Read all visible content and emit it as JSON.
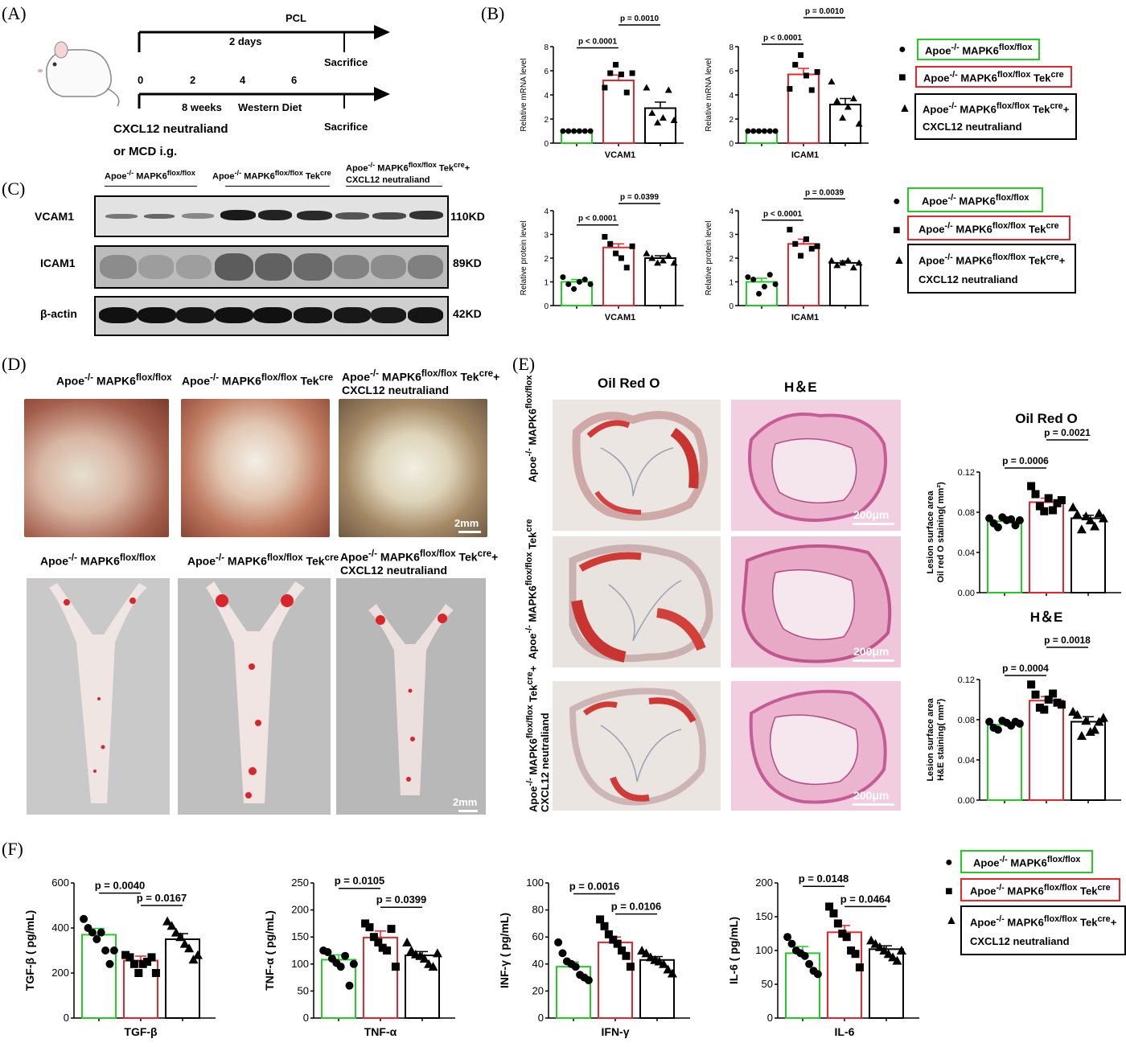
{
  "panels": {
    "A": "(A)",
    "B": "(B)",
    "C": "(C)",
    "D": "(D)",
    "E": "(E)",
    "F": "(F)"
  },
  "groups": {
    "g1": {
      "main": "Apoe",
      "sup1": "-/-",
      "mid": " MAPK6",
      "sup2": "flox/flox",
      "tail": "",
      "tail2": ""
    },
    "g2": {
      "main": "Apoe",
      "sup1": "-/-",
      "mid": " MAPK6",
      "sup2": "flox/flox",
      "tail": " Tek",
      "tailsup": "cre"
    },
    "g3": {
      "main": "Apoe",
      "sup1": "-/-",
      "mid": " MAPK6",
      "sup2": "flox/flox",
      "tail": " Tek",
      "tailsup": "cre",
      "plus": "+",
      "line2": "CXCL12 neutraliand"
    }
  },
  "colors": {
    "g1": "#22cc22",
    "g2": "#e8262b",
    "g3": "#000000"
  },
  "timeline": {
    "pcl": "PCL",
    "days": "2 days",
    "sacrifice1": "Sacrifice",
    "sacrifice2": "Sacrifice",
    "ticks": [
      "0",
      "2",
      "4",
      "6"
    ],
    "weeks": "8 weeks",
    "diet": "Western Diet",
    "treat1": "CXCL12 neutraliand",
    "treat2": "or MCD i.g."
  },
  "blot": {
    "rows": [
      {
        "name": "VCAM1",
        "kd": "110KD"
      },
      {
        "name": "ICAM1",
        "kd": "89KD"
      },
      {
        "name": "β-actin",
        "kd": "42KD"
      }
    ]
  },
  "photos": {
    "scale": "2mm"
  },
  "histo": {
    "col1": "Oil Red O",
    "col2": "H＆E",
    "scale": "200μm"
  },
  "chart_data": [
    {
      "id": "B1",
      "type": "bar",
      "xlabel": "VCAM1",
      "ylabel": "Relative mRNA level",
      "ylim": [
        0,
        8
      ],
      "ticks": [
        "0",
        "2",
        "4",
        "6",
        "8"
      ],
      "values": [
        1.0,
        5.2,
        2.9
      ],
      "sem": [
        0.0,
        0.45,
        0.5
      ],
      "points": [
        [
          1,
          1,
          1,
          1,
          1,
          1
        ],
        [
          4.6,
          5.8,
          6.5,
          5.7,
          4.2,
          5.8
        ],
        [
          4.6,
          2.5,
          1.7,
          2.1,
          4.4,
          1.9
        ]
      ],
      "sig": [
        {
          "text": "p < 0.0001",
          "a": 0,
          "b": 1,
          "y": 7.9
        },
        {
          "text": "p = 0.0010",
          "a": 1,
          "b": 2,
          "y": 9.8
        }
      ]
    },
    {
      "id": "B2",
      "type": "bar",
      "xlabel": "ICAM1",
      "ylabel": "Relative mRNA level",
      "ylim": [
        0,
        8
      ],
      "ticks": [
        "0",
        "2",
        "4",
        "6",
        "8"
      ],
      "values": [
        1.0,
        5.7,
        3.2
      ],
      "sem": [
        0.0,
        0.5,
        0.5
      ],
      "points": [
        [
          1,
          1,
          1,
          1,
          1,
          1
        ],
        [
          4.5,
          6.5,
          7.3,
          5.6,
          4.4,
          5.9
        ],
        [
          5.1,
          3.5,
          2.1,
          3.0,
          3.7,
          1.6
        ]
      ],
      "sig": [
        {
          "text": "p < 0.0001",
          "a": 0,
          "b": 1,
          "y": 8.2
        },
        {
          "text": "p = 0.0010",
          "a": 1,
          "b": 2,
          "y": 10.4
        }
      ]
    },
    {
      "id": "C1",
      "type": "bar",
      "xlabel": "VCAM1",
      "ylabel": "Relative protein level",
      "ylim": [
        0,
        4
      ],
      "ticks": [
        "0",
        "1",
        "2",
        "3",
        "4"
      ],
      "values": [
        1.0,
        2.45,
        2.0
      ],
      "sem": [
        0.1,
        0.15,
        0.1
      ],
      "points": [
        [
          1.2,
          0.9,
          0.7,
          1.0,
          1.1,
          0.9
        ],
        [
          2.9,
          2.6,
          2.2,
          2.0,
          1.6,
          2.5
        ],
        [
          2.2,
          2.0,
          1.8,
          1.9,
          2.1,
          1.8
        ]
      ],
      "sig": [
        {
          "text": "p < 0.0001",
          "a": 0,
          "b": 1,
          "y": 3.4
        },
        {
          "text": "p = 0.0399",
          "a": 1,
          "b": 2,
          "y": 4.3
        }
      ]
    },
    {
      "id": "C2",
      "type": "bar",
      "xlabel": "ICAM1",
      "ylabel": "Relative protein level",
      "ylim": [
        0,
        4
      ],
      "ticks": [
        "0",
        "1",
        "2",
        "3",
        "4"
      ],
      "values": [
        1.0,
        2.6,
        1.8
      ],
      "sem": [
        0.15,
        0.2,
        0.08
      ],
      "points": [
        [
          1.2,
          1.1,
          0.5,
          0.8,
          1.3,
          0.9
        ],
        [
          3.2,
          2.6,
          2.1,
          2.8,
          2.4,
          2.5
        ],
        [
          1.9,
          1.7,
          1.8,
          1.9,
          1.6,
          1.8
        ]
      ],
      "sig": [
        {
          "text": "p < 0.0001",
          "a": 0,
          "b": 1,
          "y": 3.6
        },
        {
          "text": "p = 0.0039",
          "a": 1,
          "b": 2,
          "y": 4.5
        }
      ]
    },
    {
      "id": "E1",
      "type": "bar",
      "title": "Oil Red O",
      "ylabel": "Lesion  surface area",
      "ylabel2": "Oil red O staining( mm²)",
      "ylim": [
        0,
        0.12
      ],
      "ticks": [
        "0.00",
        "0.04",
        "0.08",
        "0.12"
      ],
      "values": [
        0.071,
        0.09,
        0.074
      ],
      "sem": [
        0.002,
        0.004,
        0.003
      ],
      "points": [
        [
          0.074,
          0.069,
          0.065,
          0.075,
          0.072,
          0.073,
          0.067,
          0.072
        ],
        [
          0.106,
          0.098,
          0.086,
          0.081,
          0.094,
          0.082,
          0.089,
          0.092
        ],
        [
          0.085,
          0.078,
          0.063,
          0.076,
          0.072,
          0.066,
          0.079,
          0.074
        ]
      ],
      "sig": [
        {
          "text": "p = 0.0006",
          "a": 0,
          "b": 1,
          "y": 0.124
        },
        {
          "text": "p = 0.0021",
          "a": 1,
          "b": 2,
          "y": 0.152
        }
      ]
    },
    {
      "id": "E2",
      "type": "bar",
      "title": "H＆E",
      "ylabel": "Lesion  surface area",
      "ylabel2": "H&E staining( mm²)",
      "ylim": [
        0,
        0.12
      ],
      "ticks": [
        "0.00",
        "0.04",
        "0.08",
        "0.12"
      ],
      "values": [
        0.075,
        0.099,
        0.078
      ],
      "sem": [
        0.002,
        0.004,
        0.005
      ],
      "points": [
        [
          0.078,
          0.072,
          0.07,
          0.079,
          0.077,
          0.074,
          0.078,
          0.076
        ],
        [
          0.115,
          0.105,
          0.092,
          0.09,
          0.1,
          0.106,
          0.097,
          0.095
        ],
        [
          0.088,
          0.085,
          0.064,
          0.079,
          0.068,
          0.07,
          0.078,
          0.082
        ]
      ],
      "sig": [
        {
          "text": "p = 0.0004",
          "a": 0,
          "b": 1,
          "y": 0.124
        },
        {
          "text": "p = 0.0018",
          "a": 1,
          "b": 2,
          "y": 0.152
        }
      ]
    },
    {
      "id": "F1",
      "type": "bar",
      "xlabel": "TGF-β",
      "ylabel": "TGF-β ( pg/mL)",
      "ylim": [
        0,
        600
      ],
      "ticks": [
        "0",
        "200",
        "400",
        "600"
      ],
      "values": [
        370,
        255,
        350
      ],
      "sem": [
        28,
        20,
        25
      ],
      "points": [
        [
          440,
          400,
          380,
          350,
          380,
          300,
          240,
          300
        ],
        [
          280,
          270,
          240,
          200,
          240,
          250,
          270,
          200
        ],
        [
          430,
          410,
          380,
          360,
          330,
          310,
          260,
          280
        ]
      ],
      "sig": [
        {
          "text": "p = 0.0040",
          "a": 0,
          "b": 1,
          "y": 555
        },
        {
          "text": "p = 0.0167",
          "a": 1,
          "b": 2,
          "y": 500
        }
      ]
    },
    {
      "id": "F2",
      "type": "bar",
      "xlabel": "TNF-α",
      "ylabel": "TNF-α ( pg/mL)",
      "ylim": [
        0,
        250
      ],
      "ticks": [
        "0",
        "50",
        "100",
        "150",
        "200",
        "250"
      ],
      "values": [
        108,
        149,
        116
      ],
      "sem": [
        9,
        12,
        7
      ],
      "points": [
        [
          125,
          122,
          110,
          102,
          95,
          115,
          60,
          100
        ],
        [
          175,
          168,
          150,
          140,
          130,
          125,
          165,
          95
        ],
        [
          140,
          125,
          118,
          115,
          110,
          100,
          95,
          120
        ]
      ],
      "sig": [
        {
          "text": "p = 0.0105",
          "a": 0,
          "b": 1,
          "y": 240
        },
        {
          "text": "p = 0.0399",
          "a": 1,
          "b": 2,
          "y": 205
        }
      ]
    },
    {
      "id": "F3",
      "type": "bar",
      "xlabel": "IFN-γ",
      "ylabel": "INF-γ ( pg/mL)",
      "ylim": [
        0,
        100
      ],
      "ticks": [
        "0",
        "20",
        "40",
        "60",
        "80",
        "100"
      ],
      "values": [
        38,
        56,
        43
      ],
      "sem": [
        3.5,
        4,
        2.5
      ],
      "points": [
        [
          56,
          48,
          42,
          40,
          38,
          32,
          30,
          28
        ],
        [
          73,
          68,
          62,
          58,
          55,
          50,
          46,
          38
        ],
        [
          50,
          48,
          45,
          43,
          42,
          40,
          36,
          33
        ]
      ],
      "sig": [
        {
          "text": "p = 0.0016",
          "a": 0,
          "b": 1,
          "y": 92
        },
        {
          "text": "p = 0.0106",
          "a": 1,
          "b": 2,
          "y": 77
        }
      ]
    },
    {
      "id": "F4",
      "type": "bar",
      "xlabel": "IL-6",
      "ylabel": "IL-6 ( pg/mL)",
      "ylim": [
        0,
        200
      ],
      "ticks": [
        "0",
        "50",
        "100",
        "150",
        "200"
      ],
      "values": [
        96,
        127,
        102
      ],
      "sem": [
        10,
        10,
        5
      ],
      "points": [
        [
          120,
          110,
          100,
          96,
          92,
          80,
          70,
          65
        ],
        [
          165,
          155,
          140,
          125,
          120,
          100,
          95,
          75
        ],
        [
          115,
          110,
          105,
          100,
          95,
          90,
          85,
          100
        ]
      ],
      "sig": [
        {
          "text": "p = 0.0148",
          "a": 0,
          "b": 1,
          "y": 195
        },
        {
          "text": "p = 0.0464",
          "a": 1,
          "b": 2,
          "y": 165
        }
      ]
    }
  ]
}
